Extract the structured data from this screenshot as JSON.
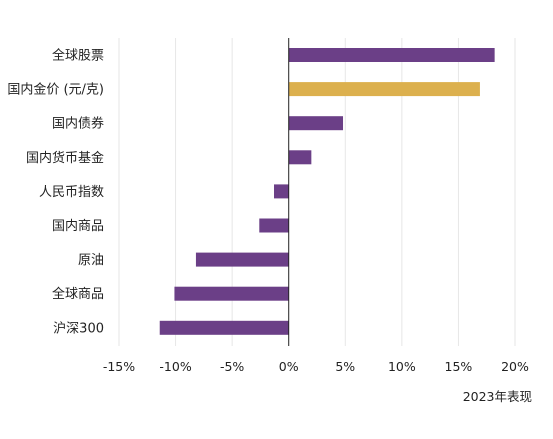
{
  "chart_data": {
    "type": "bar",
    "orientation": "horizontal",
    "categories": [
      "全球股票",
      "国内金价 (元/克)",
      "国内债券",
      "国内货币基金",
      "人民币指数",
      "国内商品",
      "原油",
      "全球商品",
      "沪深300"
    ],
    "values": [
      18.2,
      16.9,
      4.8,
      2.0,
      -1.3,
      -2.6,
      -8.2,
      -10.1,
      -11.4
    ],
    "bar_colors": [
      "#6b3f87",
      "#dcb04e",
      "#6b3f87",
      "#6b3f87",
      "#6b3f87",
      "#6b3f87",
      "#6b3f87",
      "#6b3f87",
      "#6b3f87"
    ],
    "xlim": [
      -15,
      20
    ],
    "xticks": [
      -15,
      -10,
      -5,
      0,
      5,
      10,
      15,
      20
    ],
    "xtick_labels": [
      "-15%",
      "-10%",
      "-5%",
      "0%",
      "5%",
      "10%",
      "15%",
      "20%"
    ],
    "grid": true,
    "caption": "2023年表现"
  }
}
